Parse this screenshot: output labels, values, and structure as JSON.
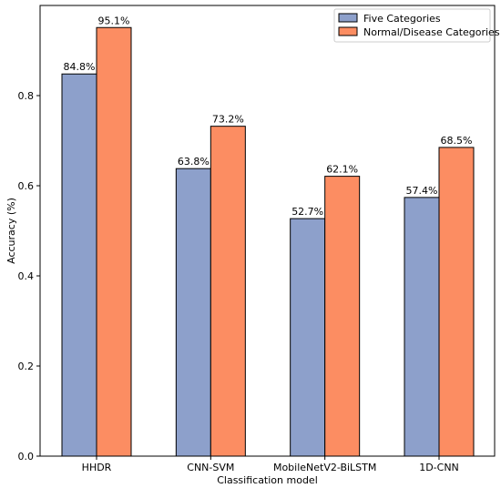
{
  "chart_data": {
    "type": "bar",
    "title": "",
    "xlabel": "Classification model",
    "ylabel": "Accuracy (%)",
    "categories": [
      "HHDR",
      "CNN-SVM",
      "MobileNetV2-BiLSTM",
      "1D-CNN"
    ],
    "series": [
      {
        "name": "Five Categories",
        "color": "#8DA0CB",
        "values": [
          0.848,
          0.638,
          0.527,
          0.574
        ],
        "labels": [
          "84.8%",
          "63.8%",
          "52.7%",
          "57.4%"
        ]
      },
      {
        "name": "Normal/Disease Categories",
        "color": "#FC8D62",
        "values": [
          0.951,
          0.732,
          0.621,
          0.685
        ],
        "labels": [
          "95.1%",
          "73.2%",
          "62.1%",
          "68.5%"
        ]
      }
    ],
    "ylim": [
      0,
      1.0
    ],
    "yticks": [
      0.0,
      0.2,
      0.4,
      0.6,
      0.8
    ],
    "ytick_labels": [
      "0.0",
      "0.2",
      "0.4",
      "0.6",
      "0.8"
    ],
    "grid": false,
    "legend_position": "top-right"
  }
}
